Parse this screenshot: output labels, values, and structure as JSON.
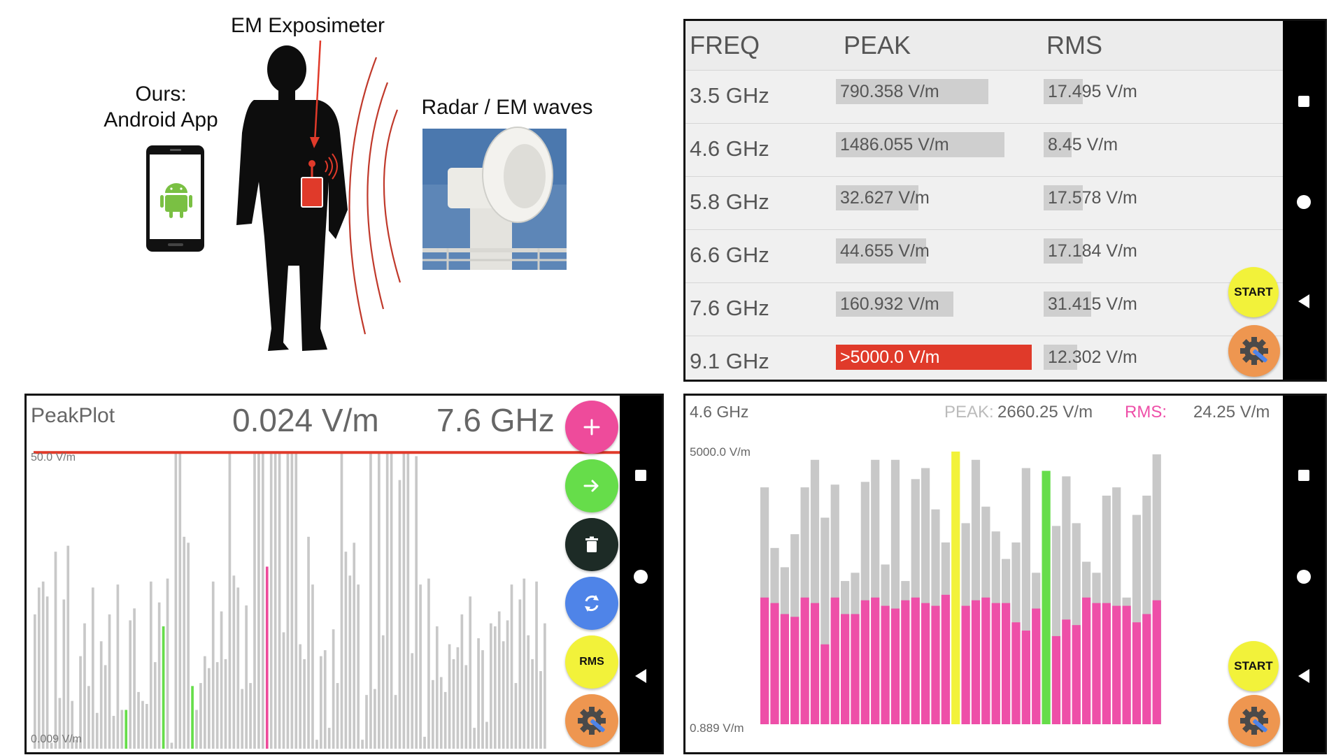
{
  "illustration": {
    "exposimeter_label": "EM Exposimeter",
    "ours_label_line1": "Ours:",
    "ours_label_line2": "Android App",
    "radar_label": "Radar / EM waves"
  },
  "colors": {
    "red_accent": "#e03a2a",
    "pink_fab": "#ee4b9b",
    "green_fab": "#66dd4a",
    "dark_fab": "#1d2b26",
    "blue_fab": "#4f84e8",
    "yellow_btn": "#f2f23a",
    "orange_btn": "#ee9650",
    "rms_pink": "#ee4fa8",
    "bar_gray": "#c8c8c8"
  },
  "table_view": {
    "headers": {
      "freq": "FREQ",
      "peak": "PEAK",
      "rms": "RMS"
    },
    "rows": [
      {
        "freq": "3.5 GHz",
        "peak": "790.358 V/m",
        "peak_level": 0.78,
        "rms": "17.495 V/m",
        "rms_level": 0.28,
        "alert": false
      },
      {
        "freq": "4.6 GHz",
        "peak": "1486.055 V/m",
        "peak_level": 0.86,
        "rms": "8.45 V/m",
        "rms_level": 0.2,
        "alert": false
      },
      {
        "freq": "5.8 GHz",
        "peak": "32.627 V/m",
        "peak_level": 0.42,
        "rms": "17.578 V/m",
        "rms_level": 0.28,
        "alert": false
      },
      {
        "freq": "6.6 GHz",
        "peak": "44.655 V/m",
        "peak_level": 0.46,
        "rms": "17.184 V/m",
        "rms_level": 0.28,
        "alert": false
      },
      {
        "freq": "7.6 GHz",
        "peak": "160.932 V/m",
        "peak_level": 0.6,
        "rms": "31.415 V/m",
        "rms_level": 0.34,
        "alert": false
      },
      {
        "freq": "9.1 GHz",
        "peak": ">5000.0 V/m",
        "peak_level": 1.0,
        "rms": "12.302 V/m",
        "rms_level": 0.24,
        "alert": true
      }
    ],
    "start_label": "START",
    "settings_icon": "gear-wrench-icon"
  },
  "peak_plot": {
    "title": "PeakPlot",
    "value": "0.024 V/m",
    "frequency": "7.6 GHz",
    "y_max_label": "50.0 V/m",
    "y_min_label": "0.009 V/m",
    "threshold_level": 0.99,
    "rms_label": "RMS",
    "bars": [
      0.45,
      0.54,
      0.56,
      0.51,
      0.02,
      0.66,
      0.17,
      0.5,
      0.68,
      0.16,
      0.03,
      0.31,
      0.42,
      0.21,
      0.54,
      0.12,
      0.36,
      0.28,
      0.45,
      0.11,
      0.55,
      0.13,
      0.13,
      0.43,
      0.47,
      0.19,
      0.16,
      0.15,
      0.56,
      0.29,
      0.49,
      0.41,
      0.57,
      0.02,
      0.99,
      0.99,
      0.71,
      0.69,
      0.21,
      0.13,
      0.22,
      0.31,
      0.27,
      0.56,
      0.29,
      0.46,
      0.3,
      0.99,
      0.58,
      0.54,
      0.2,
      0.48,
      0.22,
      0.99,
      0.99,
      0.99,
      0.61,
      0.99,
      0.99,
      0.99,
      0.39,
      0.99,
      0.99,
      0.99,
      0.35,
      0.3,
      0.71,
      0.55,
      0.03,
      0.31,
      0.33,
      0.07,
      0.4,
      0.22,
      0.99,
      0.66,
      0.58,
      0.69,
      0.55,
      0.03,
      0.18,
      0.99,
      0.2,
      0.99,
      0.38,
      0.99,
      0.99,
      0.18,
      0.9,
      0.99,
      0.99,
      0.32,
      0.98,
      0.55,
      0.04,
      0.57,
      0.23,
      0.41,
      0.24,
      0.19,
      0.35,
      0.3,
      0.34,
      0.45,
      0.28,
      0.51,
      0.07,
      0.37,
      0.33,
      0.09,
      0.42,
      0.41,
      0.46,
      0.36,
      0.43,
      0.55,
      0.22,
      0.5,
      0.57,
      0.38,
      0.3,
      0.56,
      0.26,
      0.42
    ],
    "highlight_green": [
      22,
      31,
      38
    ],
    "highlight_pink": [
      56
    ]
  },
  "bar_view": {
    "frequency": "4.6 GHz",
    "peak_label": "PEAK:",
    "peak_value": "2660.25 V/m",
    "rms_label": "RMS:",
    "rms_value": "24.25 V/m",
    "y_max_label": "5000.0 V/m",
    "y_min_label": "0.889 V/m",
    "start_label": "START",
    "bars": [
      {
        "peak": 0.86,
        "rms": 0.46
      },
      {
        "peak": 0.64,
        "rms": 0.44
      },
      {
        "peak": 0.57,
        "rms": 0.4
      },
      {
        "peak": 0.69,
        "rms": 0.39
      },
      {
        "peak": 0.86,
        "rms": 0.46
      },
      {
        "peak": 0.96,
        "rms": 0.44
      },
      {
        "peak": 0.75,
        "rms": 0.29
      },
      {
        "peak": 0.87,
        "rms": 0.46
      },
      {
        "peak": 0.52,
        "rms": 0.4
      },
      {
        "peak": 0.55,
        "rms": 0.4
      },
      {
        "peak": 0.88,
        "rms": 0.45
      },
      {
        "peak": 0.96,
        "rms": 0.46
      },
      {
        "peak": 0.58,
        "rms": 0.43
      },
      {
        "peak": 0.96,
        "rms": 0.42
      },
      {
        "peak": 0.52,
        "rms": 0.45
      },
      {
        "peak": 0.89,
        "rms": 0.46
      },
      {
        "peak": 0.93,
        "rms": 0.44
      },
      {
        "peak": 0.78,
        "rms": 0.43
      },
      {
        "peak": 0.66,
        "rms": 0.47
      },
      {
        "peak": 0.99,
        "rms": 0.99,
        "highlight": "yellow"
      },
      {
        "peak": 0.73,
        "rms": 0.43
      },
      {
        "peak": 0.96,
        "rms": 0.45
      },
      {
        "peak": 0.79,
        "rms": 0.46
      },
      {
        "peak": 0.7,
        "rms": 0.44
      },
      {
        "peak": 0.6,
        "rms": 0.44
      },
      {
        "peak": 0.66,
        "rms": 0.37
      },
      {
        "peak": 0.93,
        "rms": 0.34
      },
      {
        "peak": 0.55,
        "rms": 0.42
      },
      {
        "peak": 0.92,
        "rms": 0.92,
        "highlight": "green"
      },
      {
        "peak": 0.72,
        "rms": 0.32
      },
      {
        "peak": 0.9,
        "rms": 0.38
      },
      {
        "peak": 0.73,
        "rms": 0.36
      },
      {
        "peak": 0.59,
        "rms": 0.46
      },
      {
        "peak": 0.55,
        "rms": 0.44
      },
      {
        "peak": 0.83,
        "rms": 0.44
      },
      {
        "peak": 0.86,
        "rms": 0.43
      },
      {
        "peak": 0.46,
        "rms": 0.43
      },
      {
        "peak": 0.76,
        "rms": 0.37
      },
      {
        "peak": 0.83,
        "rms": 0.4
      },
      {
        "peak": 0.98,
        "rms": 0.45
      }
    ]
  }
}
